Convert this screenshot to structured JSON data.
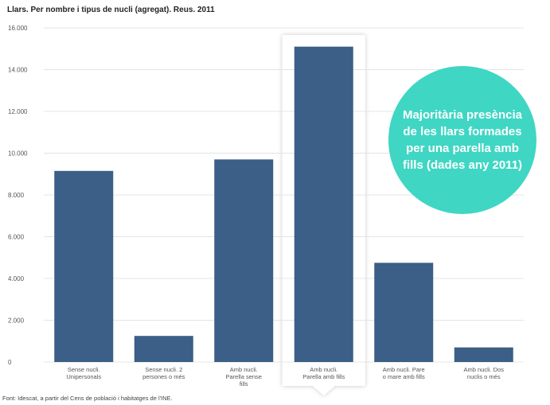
{
  "colors": {
    "bar": "#3b5f86",
    "grid": "#e4e4e4",
    "callout": "#3fd6c4",
    "highlight_panel": "#ffffff"
  },
  "chart_data": {
    "type": "bar",
    "title": "Llars. Per nombre i tipus de nucli (agregat). Reus. 2011",
    "xlabel": "",
    "ylabel": "",
    "ylim": [
      0,
      16000
    ],
    "yticks": [
      0,
      2000,
      4000,
      6000,
      8000,
      10000,
      12000,
      14000,
      16000
    ],
    "ytick_labels": [
      "0",
      "2.000",
      "4.000",
      "6.000",
      "8.000",
      "10.000",
      "12.000",
      "14.000",
      "16.000"
    ],
    "categories": [
      [
        "Sense nucli.",
        "Unipersonals"
      ],
      [
        "Sense nucli. 2",
        "persones o més"
      ],
      [
        "Amb nucli.",
        "Parella sense",
        "fills"
      ],
      [
        "Amb nucli.",
        "Parella amb fills"
      ],
      [
        "Amb nucli. Pare",
        "o mare amb fills"
      ],
      [
        "Amb nucli. Dos",
        "nuclis o més"
      ]
    ],
    "values": [
      9150,
      1250,
      9700,
      15100,
      4750,
      700
    ],
    "highlighted_category_index": 3,
    "grid": true,
    "legend": "none"
  },
  "callout_text": "Majoritària presència de les llars formades per una parella amb fills (dades any 2011)",
  "source_note": "Font: Idescat, a partir del Cens de població i habitatges de l'INE."
}
